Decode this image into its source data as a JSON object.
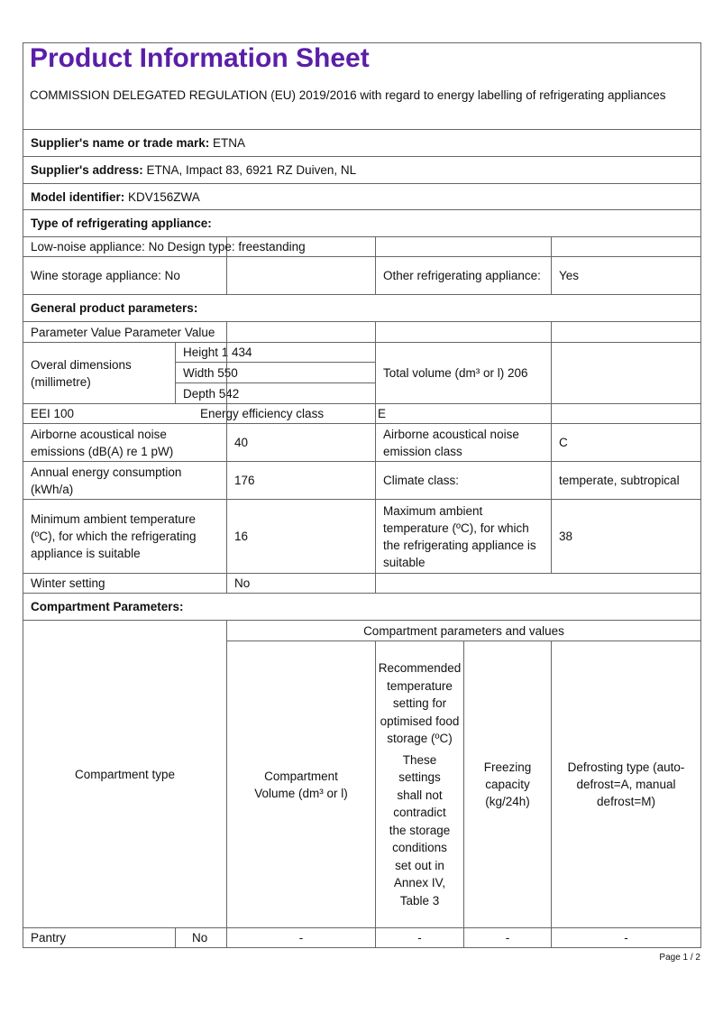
{
  "title": "Product Information Sheet",
  "subtitle": "COMMISSION DELEGATED REGULATION (EU) 2019/2016 with regard to energy labelling of refrigerating appliances",
  "supplier_name": {
    "label": "Supplier's name or trade mark:",
    "value": " ETNA"
  },
  "supplier_address": {
    "label": "Supplier's address:",
    "value": " ETNA, Impact 83, 6921 RZ Duiven, NL"
  },
  "model": {
    "label": "Model identifier:",
    "value": " KDV156ZWA"
  },
  "type_heading": "Type of refrigerating appliance:",
  "low_noise": "Low-noise appliance: No Design type: freestanding",
  "wine": "Wine storage appliance: No",
  "other_label": "Other refrigerating appliance:",
  "other_value": "Yes",
  "general_heading": "General product parameters:",
  "param_header": "Parameter Value Parameter Value",
  "dimensions": {
    "label": "Overal dimensions (millimetre)",
    "height": "Height 1 434",
    "width": "Width 550",
    "depth": "Depth 542"
  },
  "total_volume": "Total volume (dm³ or l) 206",
  "eei": "EEI 100",
  "energy_class_label": "Energy efficiency class",
  "energy_class_value": "E",
  "noise_label": "Airborne acoustical noise emissions (dB(A) re 1 pW)",
  "noise_value": "40",
  "noise_class_label": "Airborne acoustical noise emission class",
  "noise_class_value": "C",
  "annual_label": "Annual energy consumption (kWh/a)",
  "annual_value": "176",
  "climate_label": "Climate class:",
  "climate_value": "temperate, subtropical",
  "min_amb_label": "Minimum ambient temperature (ºC), for which the refrigerating appliance is suitable",
  "min_amb_value": "16",
  "max_amb_label": "Maximum ambient temperature (ºC), for which the refrigerating appliance is suitable",
  "max_amb_value": "38",
  "winter_label": "Winter setting",
  "winter_value": "No",
  "compartment_heading": "Compartment Parameters:",
  "comp_table": {
    "type_header": "Compartment type",
    "group_header": "Compartment parameters and values",
    "volume_header": "Compartment Volume (dm³ or l)",
    "temp_header": "Recommended temperature setting for optimised food storage (ºC)",
    "temp_note": "These settings shall not contradict the storage conditions set out in Annex IV, Table 3",
    "freezing_header": "Freezing capacity (kg/24h)",
    "defrost_header": "Defrosting type (auto-defrost=A, manual defrost=M)",
    "rows": [
      {
        "name": "Pantry",
        "present": "No",
        "volume": "-",
        "temp": "-",
        "freezing": "-",
        "defrost": "-"
      }
    ]
  },
  "page": "Page 1 / 2"
}
